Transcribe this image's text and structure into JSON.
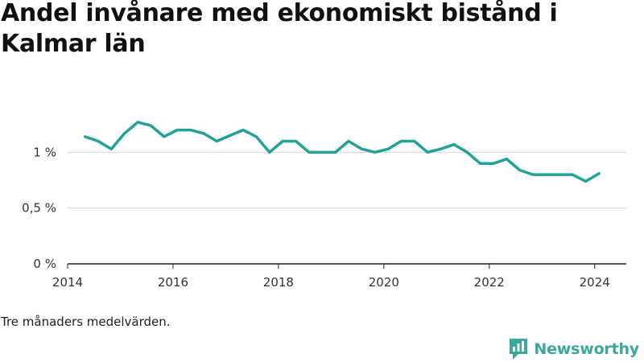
{
  "title": "Andel invånare med ekonomiskt bistånd i Kalmar län",
  "note": "Tre månaders medelvärden.",
  "brand": {
    "name": "Newsworthy",
    "icon": "newsworthy-logo-icon",
    "color": "#3aa89c"
  },
  "chart_data": {
    "type": "line",
    "title": "Andel invånare med ekonomiskt bistånd i Kalmar län",
    "xlabel": "",
    "ylabel": "",
    "xlim": [
      2014,
      2024.6
    ],
    "ylim": [
      0,
      1.5
    ],
    "x_ticks": [
      {
        "value": 2014,
        "label": "2014"
      },
      {
        "value": 2016,
        "label": "2016"
      },
      {
        "value": 2018,
        "label": "2018"
      },
      {
        "value": 2020,
        "label": "2020"
      },
      {
        "value": 2022,
        "label": "2022"
      },
      {
        "value": 2024,
        "label": "2024"
      }
    ],
    "y_ticks": [
      {
        "value": 0,
        "label": "0 %"
      },
      {
        "value": 0.5,
        "label": "0,5 %"
      },
      {
        "value": 1,
        "label": "1 %"
      }
    ],
    "grid": true,
    "legend": "none",
    "color": "#1fa398",
    "series": [
      {
        "x": [
          2014.33,
          2014.58,
          2014.83,
          2015.08,
          2015.33,
          2015.58,
          2015.83,
          2016.08,
          2016.33,
          2016.58,
          2016.83,
          2017.08,
          2017.33,
          2017.58,
          2017.83,
          2018.08,
          2018.33,
          2018.58,
          2018.83,
          2019.08,
          2019.33,
          2019.58,
          2019.83,
          2020.08,
          2020.33,
          2020.58,
          2020.83,
          2021.08,
          2021.33,
          2021.58,
          2021.83,
          2022.08,
          2022.33,
          2022.58,
          2022.83,
          2023.08,
          2023.33,
          2023.58,
          2023.83,
          2024.08
        ],
        "values": [
          1.14,
          1.1,
          1.03,
          1.17,
          1.27,
          1.24,
          1.14,
          1.2,
          1.2,
          1.17,
          1.1,
          1.15,
          1.2,
          1.14,
          1.0,
          1.1,
          1.1,
          1.0,
          1.0,
          1.0,
          1.1,
          1.03,
          1.0,
          1.03,
          1.1,
          1.1,
          1.0,
          1.03,
          1.07,
          1.0,
          0.9,
          0.9,
          0.94,
          0.84,
          0.8,
          0.8,
          0.8,
          0.8,
          0.74,
          0.81
        ]
      }
    ]
  }
}
